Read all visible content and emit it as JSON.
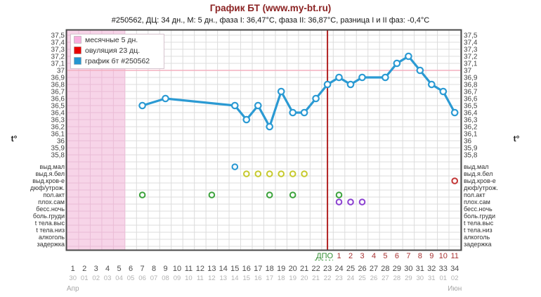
{
  "page": {
    "title": "График БТ (www.my-bt.ru)",
    "subtitle": "#250562, ДЦ: 34 дн., М: 5 дн., фаза I: 36,47°С, фаза II: 36,87°С, разница I и II фаз: -0,4°С"
  },
  "legend": {
    "items": [
      {
        "label": "месячные 5 дн.",
        "color": "#f8aede",
        "type": "menses-swatch"
      },
      {
        "label": "овуляция 23 дц.",
        "color": "#e80000",
        "type": "ovulation-swatch"
      },
      {
        "label": "график бт #250562",
        "color": "#2596d1",
        "type": "bbt-line-swatch"
      }
    ]
  },
  "axis": {
    "t_label": "t°",
    "temp_ticks": [
      "37,5",
      "37,4",
      "37,3",
      "37,2",
      "37,1",
      "37",
      "36,9",
      "36,8",
      "36,7",
      "36,6",
      "36,5",
      "36,4",
      "36,3",
      "36,2",
      "36,1",
      "36",
      "35,9",
      "35,8"
    ],
    "symptom_rows": [
      "выд.мал",
      "выд.я.бел",
      "выд.кров-е",
      "дюф/утрож.",
      "пол.акт",
      "плох.сам",
      "бесс.ночь",
      "боль.груди",
      "t тела.выс",
      "t тела.низ",
      "алкоголь",
      "задержка"
    ],
    "cycle_days": [
      1,
      2,
      3,
      4,
      5,
      6,
      7,
      8,
      9,
      10,
      11,
      12,
      13,
      14,
      15,
      16,
      17,
      18,
      19,
      20,
      21,
      22,
      23,
      24,
      25,
      26,
      27,
      28,
      29,
      30,
      31,
      32,
      33,
      34
    ],
    "dates": [
      "30",
      "01",
      "02",
      "03",
      "04",
      "05",
      "06",
      "07",
      "08",
      "09",
      "10",
      "11",
      "12",
      "13",
      "14",
      "15",
      "16",
      "17",
      "18",
      "19",
      "20",
      "21",
      "22",
      "23",
      "24",
      "25",
      "26",
      "27",
      "28",
      "29",
      "30",
      "31",
      "01",
      "02"
    ],
    "months": [
      {
        "label": "Апр",
        "day": 1
      },
      {
        "label": "Июн",
        "day": 34
      }
    ],
    "dpo": {
      "label": "ДПО",
      "numbers": [
        1,
        2,
        3,
        4,
        5,
        6,
        7,
        8,
        9,
        10,
        11
      ],
      "start_day": 24
    }
  },
  "chart_data": {
    "type": "line",
    "title": "График БТ (www.my-bt.ru)",
    "xlabel": "день цикла",
    "ylabel": "t°",
    "xlim": [
      1,
      34
    ],
    "ylim": [
      35.8,
      37.5
    ],
    "grid": true,
    "points": [
      [
        7,
        36.5
      ],
      [
        9,
        36.6
      ],
      [
        15,
        36.5
      ],
      [
        16,
        36.3
      ],
      [
        17,
        36.5
      ],
      [
        18,
        36.2
      ],
      [
        19,
        36.7
      ],
      [
        20,
        36.4
      ],
      [
        21,
        36.4
      ],
      [
        22,
        36.6
      ],
      [
        23,
        36.8
      ],
      [
        24,
        36.9
      ],
      [
        25,
        36.8
      ],
      [
        26,
        36.9
      ],
      [
        28,
        36.9
      ],
      [
        29,
        37.1
      ],
      [
        30,
        37.2
      ],
      [
        31,
        37.0
      ],
      [
        32,
        36.8
      ],
      [
        33,
        36.7
      ],
      [
        34,
        36.4
      ]
    ],
    "coverline_temp": 37.0,
    "ovulation_day": 23,
    "menses": {
      "from_day": 1,
      "to_day": 5
    },
    "phase1_avg": "36,47",
    "phase2_avg": "36,87"
  },
  "markers": [
    {
      "row_label": "выд.мал",
      "row_index": 0,
      "days": [
        15
      ],
      "color": "#2596d1"
    },
    {
      "row_label": "выд.я.бел",
      "row_index": 1,
      "days": [
        16,
        17,
        18,
        19,
        20,
        21
      ],
      "color": "#c6c92c"
    },
    {
      "row_label": "выд.кров-е",
      "row_index": 2,
      "days": [
        34
      ],
      "color": "#c23535"
    },
    {
      "row_label": "пол.акт",
      "row_index": 4,
      "days": [
        7,
        13,
        18,
        20,
        24
      ],
      "color": "#3aa23a"
    },
    {
      "row_label": "плох.сам",
      "row_index": 5,
      "days": [
        24,
        25,
        26
      ],
      "color": "#8a3fd0"
    }
  ],
  "colors": {
    "line": "#2b9ad3",
    "ovulation_line": "#b22222",
    "coverline": "#f4b0bf",
    "menses_fill": "#f7d4e8",
    "menses_grid": "#eabcd6",
    "grid": "#dcdcdc",
    "plot_border": "#4a4a4a",
    "title": "#8b2323"
  }
}
